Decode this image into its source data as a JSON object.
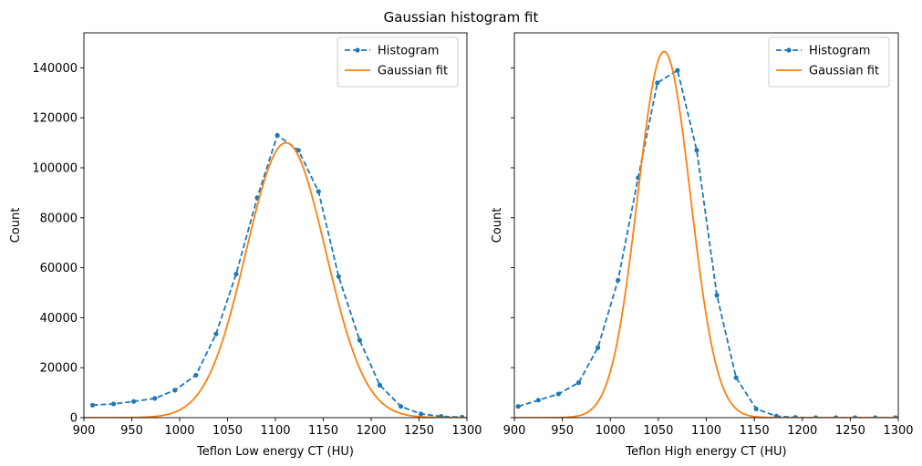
{
  "figure": {
    "title": "Gaussian histogram fit"
  },
  "chart_data": [
    {
      "type": "line",
      "xlabel": "Teflon Low energy CT (HU)",
      "ylabel": "Count",
      "xlim": [
        900,
        1300
      ],
      "ylim": [
        0,
        154000
      ],
      "xticks": [
        900,
        950,
        1000,
        1050,
        1100,
        1150,
        1200,
        1250,
        1300
      ],
      "yticks": [
        0,
        20000,
        40000,
        60000,
        80000,
        100000,
        120000,
        140000
      ],
      "show_ytick_labels": true,
      "grid": false,
      "legend": "top-right",
      "series": [
        {
          "name": "Histogram",
          "style": "dashed-markers",
          "color": "#1f77b4",
          "x": [
            909,
            931,
            952,
            974,
            995,
            1017,
            1038,
            1059,
            1081,
            1102,
            1124,
            1145,
            1166,
            1188,
            1209,
            1231,
            1252,
            1273,
            1295
          ],
          "y": [
            5000,
            5500,
            6500,
            7700,
            11000,
            17000,
            33500,
            57500,
            88000,
            113000,
            107000,
            90500,
            56500,
            31000,
            13000,
            4500,
            1500,
            500,
            200
          ]
        },
        {
          "name": "Gaussian fit",
          "style": "solid",
          "color": "#ff7f0e",
          "gaussian": {
            "amplitude": 110000,
            "mean": 1111,
            "sigma": 41.5
          }
        }
      ]
    },
    {
      "type": "line",
      "xlabel": "Teflon High energy CT (HU)",
      "ylabel": "Count",
      "xlim": [
        900,
        1300
      ],
      "ylim": [
        0,
        154000
      ],
      "xticks": [
        900,
        950,
        1000,
        1050,
        1100,
        1150,
        1200,
        1250,
        1300
      ],
      "yticks": [
        0,
        20000,
        40000,
        60000,
        80000,
        100000,
        120000,
        140000
      ],
      "show_ytick_labels": false,
      "grid": false,
      "legend": "top-right",
      "series": [
        {
          "name": "Histogram",
          "style": "dashed-markers",
          "color": "#1f77b4",
          "x": [
            904,
            925,
            946,
            967,
            987,
            1008,
            1029,
            1049,
            1070,
            1090,
            1111,
            1131,
            1152,
            1173,
            1193,
            1214,
            1235,
            1255,
            1276,
            1297
          ],
          "y": [
            4500,
            7000,
            9500,
            14000,
            28000,
            55000,
            96000,
            134000,
            139000,
            107000,
            49000,
            16000,
            3500,
            600,
            100,
            0,
            0,
            0,
            0,
            0
          ]
        },
        {
          "name": "Gaussian fit",
          "style": "solid",
          "color": "#ff7f0e",
          "gaussian": {
            "amplitude": 146500,
            "mean": 1056,
            "sigma": 27.5
          }
        }
      ]
    }
  ]
}
